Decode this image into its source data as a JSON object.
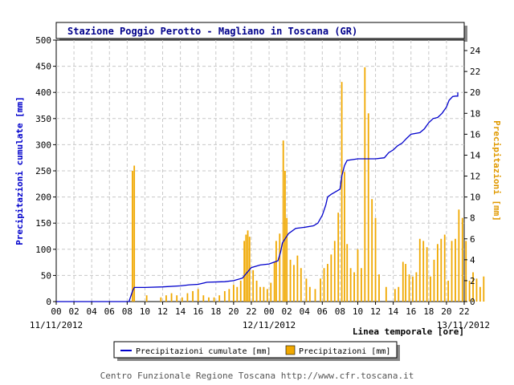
{
  "chart_data": {
    "type": "bar+line",
    "title": "Stazione Poggio Perotto - Magliano in Toscana (GR)",
    "ylabel_left": "Precipitazioni cumulate [mm]",
    "ylabel_right": "Precipitazioni [mm]",
    "xlabel": "Linea temporale [ore]",
    "ylim_left": [
      0,
      500
    ],
    "ylim_right": [
      0,
      25
    ],
    "yticks_left": [
      "0",
      "50",
      "100",
      "150",
      "200",
      "250",
      "300",
      "350",
      "400",
      "450",
      "500"
    ],
    "yticks_right": [
      "0",
      "2",
      "4",
      "6",
      "8",
      "10",
      "12",
      "14",
      "16",
      "18",
      "20",
      "22",
      "24"
    ],
    "x_range_hours": [
      0,
      46
    ],
    "x_tick_labels": [
      "00",
      "02",
      "04",
      "06",
      "08",
      "10",
      "12",
      "14",
      "16",
      "18",
      "20",
      "22",
      "00",
      "02",
      "04",
      "06",
      "08",
      "10",
      "12",
      "14",
      "16",
      "18",
      "20",
      "22"
    ],
    "date_labels": [
      "11/11/2012",
      "12/11/2012",
      "13/11/2012"
    ],
    "grid": true,
    "legend_placement": "bottom-center",
    "series": [
      {
        "name": "Precipitazioni cumulate [mm]",
        "kind": "line",
        "axis": "left",
        "color": "#0000cc",
        "points": [
          [
            0,
            0
          ],
          [
            8.2,
            0
          ],
          [
            8.4,
            10
          ],
          [
            8.6,
            20
          ],
          [
            8.8,
            27
          ],
          [
            10,
            27
          ],
          [
            12,
            28
          ],
          [
            14,
            30
          ],
          [
            15,
            32
          ],
          [
            16,
            33
          ],
          [
            17,
            37
          ],
          [
            19,
            38
          ],
          [
            20,
            40
          ],
          [
            21,
            45
          ],
          [
            21.5,
            55
          ],
          [
            22,
            65
          ],
          [
            23,
            70
          ],
          [
            24,
            72
          ],
          [
            25,
            78
          ],
          [
            25.3,
            95
          ],
          [
            25.5,
            112
          ],
          [
            25.8,
            120
          ],
          [
            26.2,
            130
          ],
          [
            27,
            140
          ],
          [
            28,
            142
          ],
          [
            29,
            145
          ],
          [
            29.5,
            150
          ],
          [
            30,
            165
          ],
          [
            30.4,
            185
          ],
          [
            30.6,
            200
          ],
          [
            31,
            205
          ],
          [
            31.5,
            210
          ],
          [
            32,
            215
          ],
          [
            32.2,
            240
          ],
          [
            32.5,
            260
          ],
          [
            32.8,
            270
          ],
          [
            34,
            273
          ],
          [
            35,
            273
          ],
          [
            36,
            273
          ],
          [
            37,
            275
          ],
          [
            37.5,
            285
          ],
          [
            38,
            290
          ],
          [
            38.5,
            298
          ],
          [
            39,
            303
          ],
          [
            39.5,
            312
          ],
          [
            40,
            320
          ],
          [
            41,
            323
          ],
          [
            41.5,
            330
          ],
          [
            42,
            342
          ],
          [
            42.5,
            350
          ],
          [
            43,
            352
          ],
          [
            43.5,
            360
          ],
          [
            44,
            372
          ],
          [
            44.3,
            385
          ],
          [
            44.7,
            392
          ],
          [
            45,
            393
          ],
          [
            46,
            393
          ],
          [
            46.5,
            398
          ],
          [
            47,
            398
          ],
          [
            47.5,
            400
          ],
          [
            48,
            400
          ]
        ]
      },
      {
        "name": "Precipitazioni [mm]",
        "kind": "bar",
        "axis": "right",
        "color": "#f0a800",
        "points": [
          [
            8.6,
            12.5
          ],
          [
            8.8,
            13
          ],
          [
            10.2,
            0.6
          ],
          [
            11.8,
            0.4
          ],
          [
            12.4,
            0.6
          ],
          [
            13,
            0.8
          ],
          [
            13.6,
            0.6
          ],
          [
            14.2,
            0.4
          ],
          [
            14.8,
            0.8
          ],
          [
            15.4,
            1
          ],
          [
            16,
            1.2
          ],
          [
            16.6,
            0.6
          ],
          [
            17.2,
            0.4
          ],
          [
            17.8,
            0.4
          ],
          [
            18.4,
            0.6
          ],
          [
            19,
            1
          ],
          [
            19.5,
            1.2
          ],
          [
            20,
            1.6
          ],
          [
            20.4,
            1.4
          ],
          [
            20.8,
            2
          ],
          [
            21.2,
            5.8
          ],
          [
            21.4,
            6.4
          ],
          [
            21.6,
            6.8
          ],
          [
            21.8,
            6.2
          ],
          [
            22.2,
            3
          ],
          [
            22.6,
            2
          ],
          [
            23,
            1.4
          ],
          [
            23.4,
            1.4
          ],
          [
            23.8,
            1.2
          ],
          [
            24.2,
            1.8
          ],
          [
            24.6,
            3.8
          ],
          [
            24.8,
            5.8
          ],
          [
            25.2,
            6.5
          ],
          [
            25.6,
            15.4
          ],
          [
            25.8,
            12.5
          ],
          [
            26,
            8
          ],
          [
            26.4,
            4
          ],
          [
            26.8,
            3.5
          ],
          [
            27.2,
            4.4
          ],
          [
            27.6,
            3.2
          ],
          [
            28.2,
            2.2
          ],
          [
            28.6,
            1.4
          ],
          [
            29.2,
            1.2
          ],
          [
            29.8,
            2.2
          ],
          [
            30.2,
            3.2
          ],
          [
            30.6,
            3.6
          ],
          [
            31,
            4.5
          ],
          [
            31.4,
            5.8
          ],
          [
            31.8,
            8.5
          ],
          [
            32.2,
            21
          ],
          [
            32.5,
            12.4
          ],
          [
            32.8,
            5.5
          ],
          [
            33.2,
            3.2
          ],
          [
            33.6,
            2.8
          ],
          [
            34,
            5
          ],
          [
            34.4,
            3.2
          ],
          [
            34.8,
            22.4
          ],
          [
            35.2,
            18
          ],
          [
            35.6,
            9.8
          ],
          [
            36,
            8
          ],
          [
            36.4,
            2.6
          ],
          [
            37.2,
            1.4
          ],
          [
            38.2,
            1.2
          ],
          [
            38.6,
            1.4
          ],
          [
            39.1,
            3.8
          ],
          [
            39.4,
            3.6
          ],
          [
            39.8,
            2.6
          ],
          [
            40.2,
            2.4
          ],
          [
            40.6,
            2.8
          ],
          [
            41,
            6
          ],
          [
            41.4,
            5.8
          ],
          [
            41.8,
            5.2
          ],
          [
            42.2,
            2.4
          ],
          [
            42.6,
            4
          ],
          [
            43,
            5.5
          ],
          [
            43.4,
            6
          ],
          [
            43.8,
            6.4
          ],
          [
            44.2,
            2
          ],
          [
            44.6,
            5.8
          ],
          [
            45,
            6
          ],
          [
            45.4,
            8.8
          ],
          [
            45.8,
            8
          ],
          [
            46.2,
            5.8
          ],
          [
            46.6,
            2
          ],
          [
            47,
            2.8
          ],
          [
            47.4,
            2.2
          ],
          [
            47.8,
            1.4
          ],
          [
            48.2,
            2.4
          ]
        ]
      }
    ]
  },
  "footer": "Centro Funzionale Regione Toscana http://www.cfr.toscana.it",
  "colors": {
    "background": "#ffffff",
    "grid": "#c8c8c8",
    "title_text": "#00008b",
    "axis_left_label": "#0000cc",
    "axis_right_label": "#e09900",
    "panel_shadow": "#888888"
  }
}
